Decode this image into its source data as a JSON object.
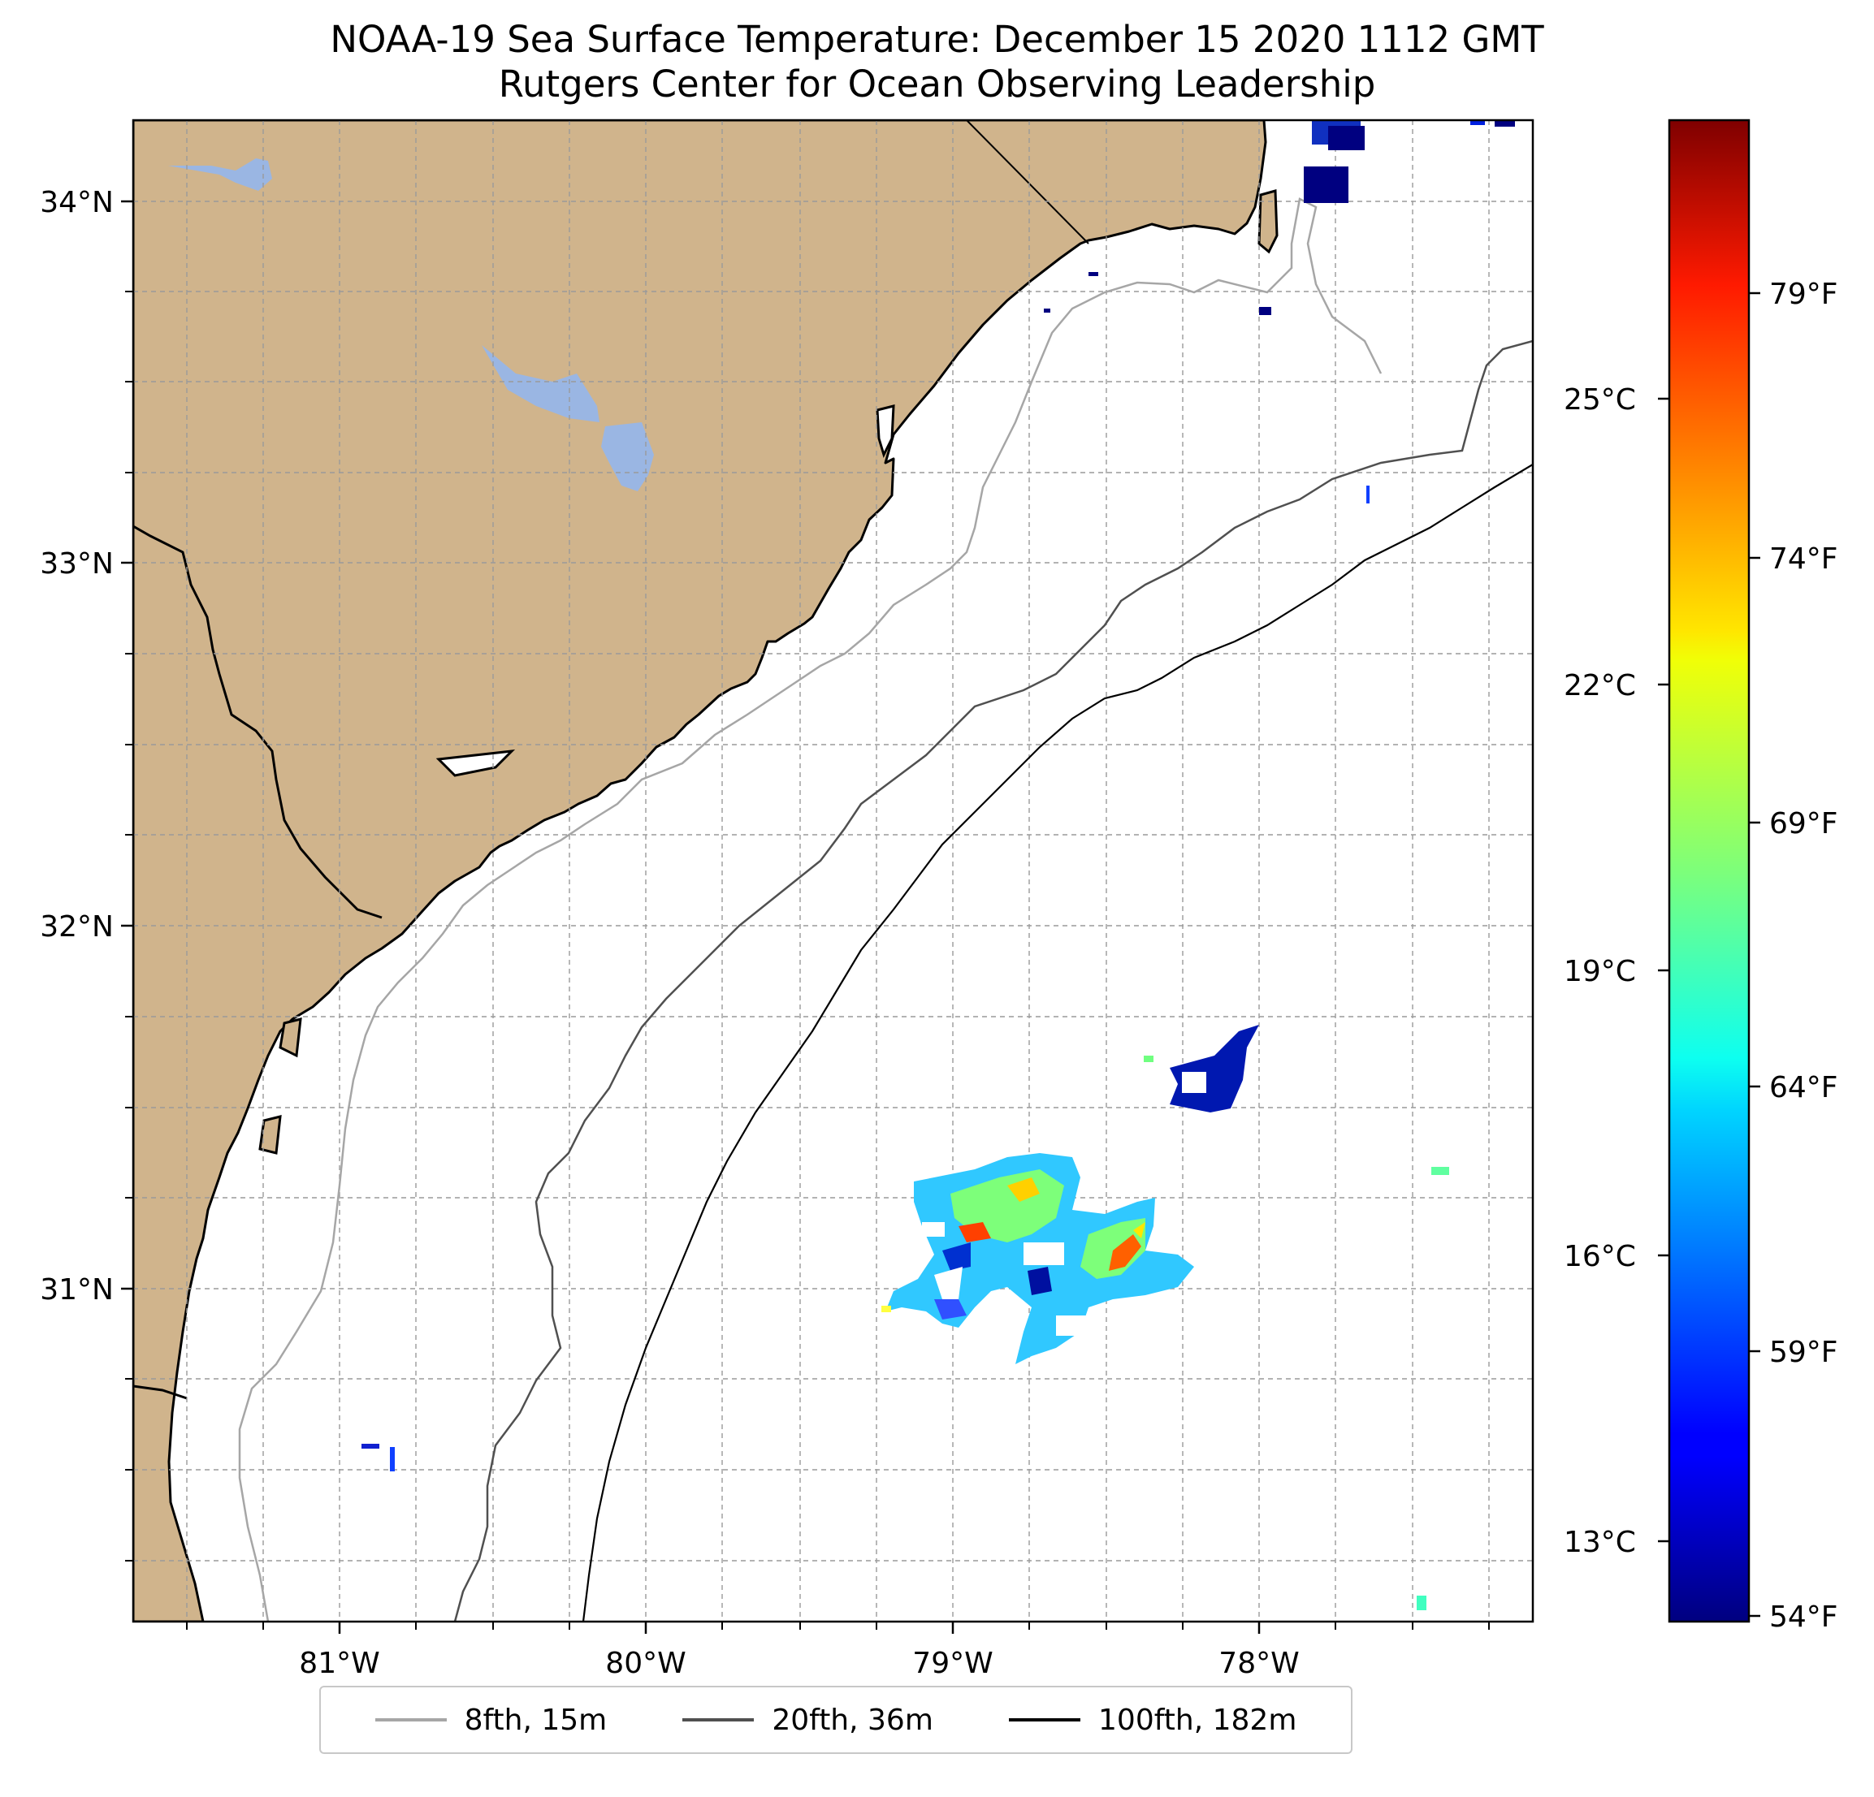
{
  "title": "NOAA-19 Sea Surface Temperature: December 15 2020 1112 GMT",
  "subtitle": "Rutgers Center for Ocean Observing Leadership",
  "map": {
    "lon_range": [
      -81.67,
      -77.12
    ],
    "lat_range": [
      30.07,
      34.2
    ],
    "land_color": "#d0b48c",
    "water_body_color": "#9ab6e3",
    "ocean_color": "#ffffff",
    "grid": "dashed, on",
    "lon_ticks": [
      {
        "value": -81,
        "label": "81°W"
      },
      {
        "value": -80,
        "label": "80°W"
      },
      {
        "value": -79,
        "label": "79°W"
      },
      {
        "value": -78,
        "label": "78°W"
      }
    ],
    "lat_ticks": [
      {
        "value": 34,
        "label": "34°N"
      },
      {
        "value": 33,
        "label": "33°N"
      },
      {
        "value": 32,
        "label": "32°N"
      },
      {
        "value": 31,
        "label": "31°N"
      }
    ]
  },
  "colorbar": {
    "colormap": "jet",
    "celsius_ticks": [
      {
        "value": 25,
        "label": "25°C"
      },
      {
        "value": 22,
        "label": "22°C"
      },
      {
        "value": 19,
        "label": "19°C"
      },
      {
        "value": 16,
        "label": "16°C"
      },
      {
        "value": 13,
        "label": "13°C"
      }
    ],
    "fahrenheit_ticks": [
      {
        "value": 79,
        "label": "79°F"
      },
      {
        "value": 74,
        "label": "74°F"
      },
      {
        "value": 69,
        "label": "69°F"
      },
      {
        "value": 64,
        "label": "64°F"
      },
      {
        "value": 59,
        "label": "59°F"
      },
      {
        "value": 54,
        "label": "54°F"
      }
    ]
  },
  "legend": {
    "placement": "bottom-center",
    "items": [
      {
        "label": "8fth, 15m",
        "color": "#a6a6a6"
      },
      {
        "label": "20fth, 36m",
        "color": "#505050"
      },
      {
        "label": "100fth, 182m",
        "color": "#000000"
      }
    ]
  }
}
